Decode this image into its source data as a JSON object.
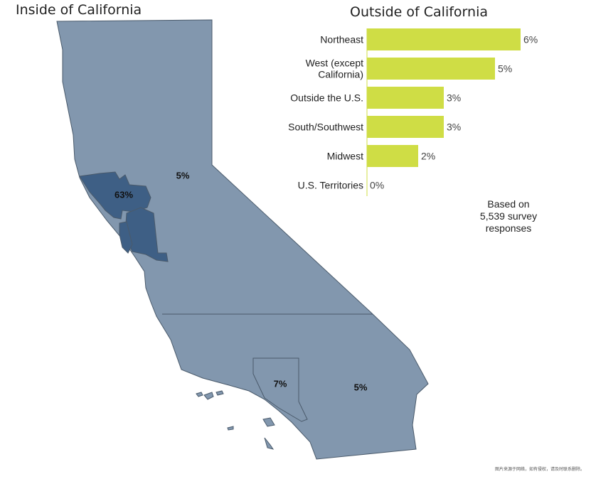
{
  "map_panel": {
    "title": "Inside of California",
    "regions": [
      {
        "label": "63%",
        "value": 63
      },
      {
        "label": "5%",
        "value": 5
      },
      {
        "label": "7%",
        "value": 7
      },
      {
        "label": "5%",
        "value": 5
      }
    ]
  },
  "chart_data": {
    "type": "bar",
    "orientation": "horizontal",
    "title": "Outside of California",
    "xlabel": "",
    "ylabel": "",
    "categories": [
      [
        "Northeast"
      ],
      [
        "West (except",
        "California)"
      ],
      [
        "Outside the U.S."
      ],
      [
        "South/Southwest"
      ],
      [
        "Midwest"
      ],
      [
        "U.S. Territories"
      ]
    ],
    "values": [
      6,
      5,
      3,
      3,
      2,
      0
    ],
    "value_labels": [
      "6%",
      "5%",
      "3%",
      "3%",
      "2%",
      "0%"
    ],
    "xlim": [
      0,
      6
    ],
    "grid": false,
    "legend": "none",
    "colors": {
      "bar": "#cfdd45",
      "axis": "#cfdd45"
    }
  },
  "note": {
    "lines": [
      "Based on",
      "5,539 survey",
      "responses"
    ]
  },
  "colors": {
    "map_fill": "#8297ae",
    "bay_area_fill": "#3e5f85",
    "map_stroke": "#4a5a6b"
  },
  "watermark": "图片来源于网络，如有侵权，请及时联系删除。"
}
